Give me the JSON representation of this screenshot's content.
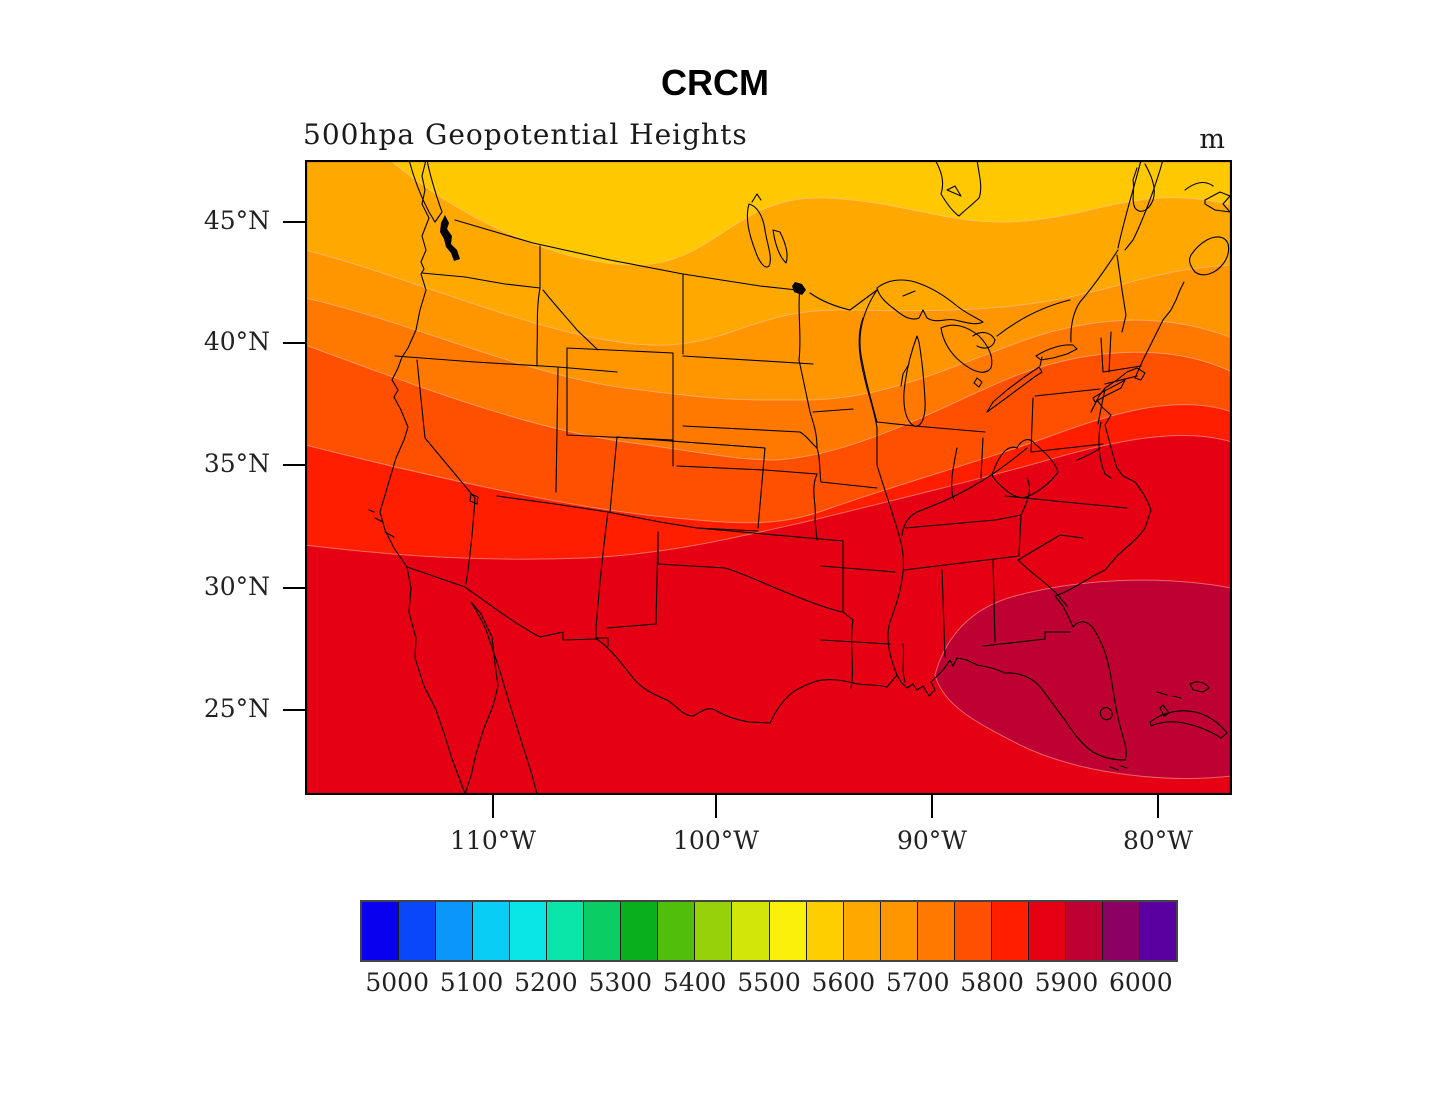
{
  "header": {
    "title": "CRCM",
    "subtitle": "500hpa Geopotential Heights",
    "units": "m"
  },
  "map": {
    "y_axis": {
      "labels": [
        "45°N",
        "40°N",
        "35°N",
        "30°N",
        "25°N"
      ]
    },
    "x_axis": {
      "labels": [
        "110°W",
        "100°W",
        "90°W",
        "80°W"
      ]
    },
    "region": "Continental United States with state boundaries, Great Lakes, Gulf of Mexico, Baja California, Florida and Cuba"
  },
  "colorbar": {
    "tick_labels": [
      "5000",
      "5100",
      "5200",
      "5300",
      "5400",
      "5500",
      "5600",
      "5700",
      "5800",
      "5900",
      "6000"
    ],
    "cell_colors": [
      "#0A00F0",
      "#0A46FA",
      "#0A96FA",
      "#0ACDF5",
      "#0AE6E6",
      "#0AE6AA",
      "#0ACD64",
      "#0AAF1E",
      "#50BE0A",
      "#96D20A",
      "#D2E60A",
      "#FAF00A",
      "#FFCE00",
      "#FFA800",
      "#FF9600",
      "#FF7800",
      "#FF5000",
      "#FF1E00",
      "#E60014",
      "#BE0032",
      "#8C0064",
      "#5A00A0"
    ],
    "interval_m": 50
  },
  "chart_data": {
    "type": "heatmap",
    "subtype": "filled-contour-map",
    "title": "CRCM",
    "variable": "500hpa Geopotential Heights",
    "units": "m",
    "value_range": [
      5000,
      6000
    ],
    "contour_interval_m": 50,
    "legend_position": "bottom",
    "x_ticks": [
      "110°W",
      "100°W",
      "90°W",
      "80°W"
    ],
    "y_ticks": [
      "45°N",
      "40°N",
      "35°N",
      "30°N",
      "25°N"
    ],
    "bands": [
      {
        "range_m": "5600-5650",
        "color": "#FFC800",
        "location": "northern edge (southern Canada)"
      },
      {
        "range_m": "5650-5700",
        "color": "#FFA800",
        "location": "US-Canada border, Pacific Northwest"
      },
      {
        "range_m": "5700-5750",
        "color": "#FF9600",
        "location": "Montana, Dakotas, upper Great Lakes"
      },
      {
        "range_m": "5750-5800",
        "color": "#FF7800",
        "location": "Idaho, Wyoming, Wisconsin, Michigan, New England"
      },
      {
        "range_m": "5800-5850",
        "color": "#FF5000",
        "location": "Nevada, Colorado, Iowa, Ohio valley, New York"
      },
      {
        "range_m": "5850-5900",
        "color": "#FF1E00",
        "location": "California coast, Kansas, Missouri, mid-Atlantic"
      },
      {
        "range_m": "5900-5950",
        "color": "#E60014",
        "location": "southern US, Texas, Mexico"
      },
      {
        "range_m": "5950-6000",
        "color": "#BE0032",
        "location": "southeast maximum over Florida and adjacent Atlantic/Gulf"
      }
    ]
  }
}
